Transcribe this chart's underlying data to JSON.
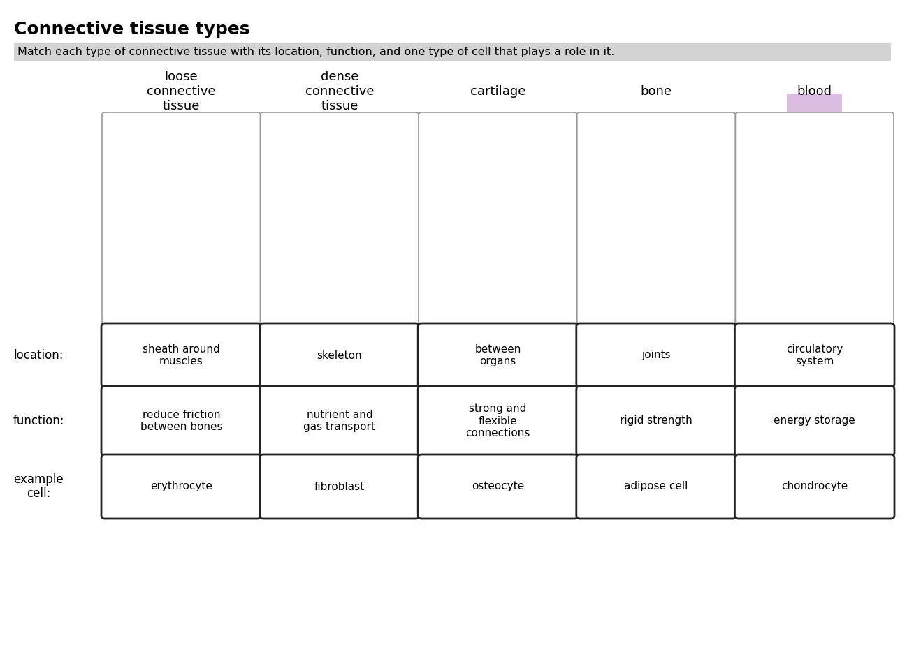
{
  "title": "Connective tissue types",
  "subtitle": "Match each type of connective tissue with its location, function, and one type of cell that plays a role in it.",
  "subtitle_bg": "#d3d3d3",
  "background_color": "#ffffff",
  "col_labels": [
    {
      "label": "loose\nconnective\ntissue",
      "bg": null
    },
    {
      "label": "dense\nconnective\ntissue",
      "bg": null
    },
    {
      "label": "cartilage",
      "bg": null
    },
    {
      "label": "bone",
      "bg": null
    },
    {
      "label": "blood",
      "bg": "#dbbde2"
    }
  ],
  "location_cells": [
    "sheath around\nmuscles",
    "skeleton",
    "between\norgans",
    "joints",
    "circulatory\nsystem"
  ],
  "function_cells": [
    "reduce friction\nbetween bones",
    "nutrient and\ngas transport",
    "strong and\nflexible\nconnections",
    "rigid strength",
    "energy storage"
  ],
  "example_cells": [
    "erythrocyte",
    "fibroblast",
    "osteocyte",
    "adipose cell",
    "chondrocyte"
  ],
  "title_fontsize": 18,
  "subtitle_fontsize": 11.5,
  "col_label_fontsize": 13,
  "cell_fontsize": 11,
  "row_label_fontsize": 12,
  "blood_highlight": "#dbbde2"
}
